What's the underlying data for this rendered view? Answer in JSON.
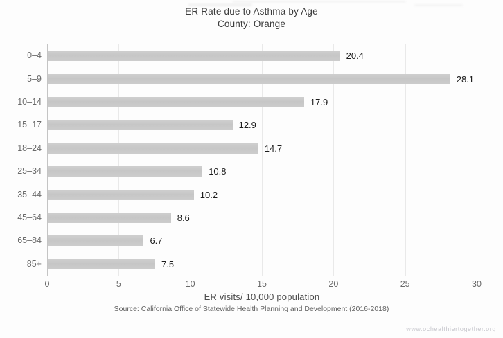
{
  "page": {
    "watermark": "www.ochealthiertogether.org"
  },
  "chart_data": {
    "type": "bar",
    "orientation": "horizontal",
    "title": "ER Rate due to Asthma by Age",
    "subtitle": "County: Orange",
    "categories": [
      "0–4",
      "5–9",
      "10–14",
      "15–17",
      "18–24",
      "25–34",
      "35–44",
      "45–64",
      "65–84",
      "85+"
    ],
    "values": [
      20.4,
      28.1,
      17.9,
      12.9,
      14.7,
      10.8,
      10.2,
      8.6,
      6.7,
      7.5
    ],
    "value_labels": [
      "20.4",
      "28.1",
      "17.9",
      "12.9",
      "14.7",
      "10.8",
      "10.2",
      "8.6",
      "6.7",
      "7.5"
    ],
    "xlabel": "ER visits/ 10,000 population",
    "source": "Source: California Office of Statewide Health Planning and Development (2016-2018)",
    "xlim": [
      0,
      30
    ],
    "xticks": [
      0,
      5,
      10,
      15,
      20,
      25,
      30
    ],
    "grid": "vertical",
    "legend": "none",
    "bar_color": "#c9c9c9",
    "gridline_color": "#e9e9e9",
    "axis_line_color": "#c4c4c4"
  }
}
